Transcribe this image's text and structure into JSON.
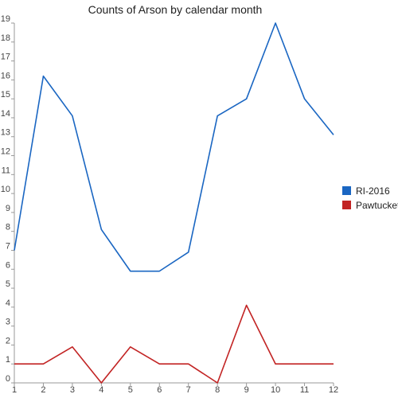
{
  "chart_data": {
    "type": "line",
    "title": "Counts of Arson by calendar month",
    "xlabel": "",
    "ylabel": "",
    "x": [
      1,
      2,
      3,
      4,
      5,
      6,
      7,
      8,
      9,
      10,
      11,
      12
    ],
    "xlim": [
      1,
      12
    ],
    "ylim": [
      0,
      19
    ],
    "yticks": [
      0,
      1,
      2,
      3,
      4,
      5,
      6,
      7,
      8,
      9,
      10,
      11,
      12,
      13,
      14,
      15,
      16,
      17,
      18,
      19
    ],
    "grid": false,
    "legend_position": "right",
    "series": [
      {
        "name": "RI-2016",
        "color": "#1a66c2",
        "values": [
          7,
          16.2,
          14.1,
          8.1,
          5.9,
          5.9,
          6.9,
          14.1,
          15,
          19,
          15,
          13.1
        ]
      },
      {
        "name": "Pawtucket",
        "color": "#c22424",
        "values": [
          1,
          1,
          1.9,
          0,
          1.9,
          1,
          1,
          0,
          4.1,
          1,
          1,
          1
        ]
      }
    ]
  }
}
